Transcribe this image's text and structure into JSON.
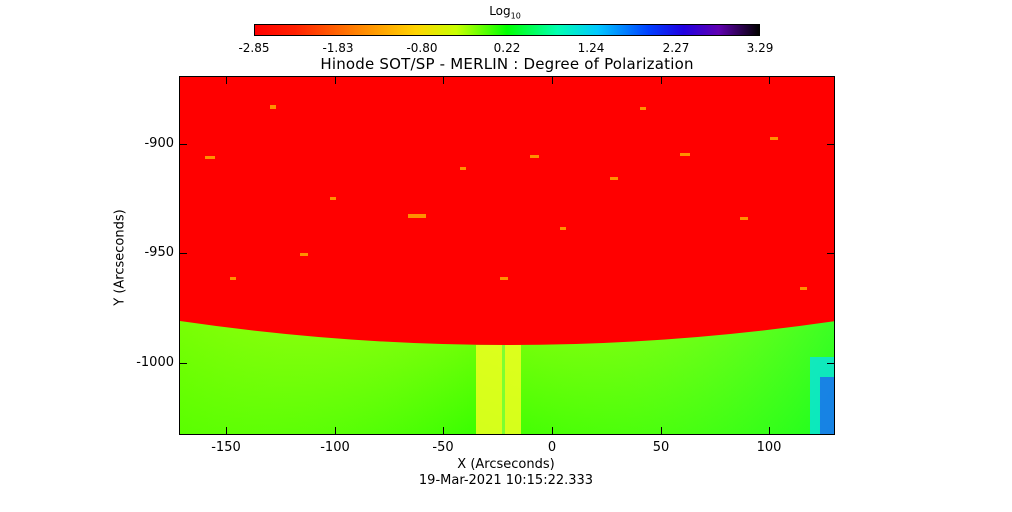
{
  "colorbar": {
    "title": "Log",
    "title_subscript": "10",
    "ticks": [
      "-2.85",
      "-1.83",
      "-0.80",
      "0.22",
      "1.24",
      "2.27",
      "3.29"
    ]
  },
  "title": "Hinode SOT/SP - MERLIN : Degree of Polarization",
  "x_axis": {
    "label": "X (Arcseconds)",
    "ticks": [
      "-150",
      "-100",
      "-50",
      "0",
      "50",
      "100"
    ]
  },
  "y_axis": {
    "label": "Y (Arcseconds)",
    "ticks": [
      "-900",
      "-950",
      "-1000"
    ]
  },
  "timestamp": "19-Mar-2021 10:15:22.333",
  "colors": {
    "disk": "#ff0000",
    "offlimb_yellow": "#e6ff00",
    "offlimb_green": "#33ff00"
  }
}
